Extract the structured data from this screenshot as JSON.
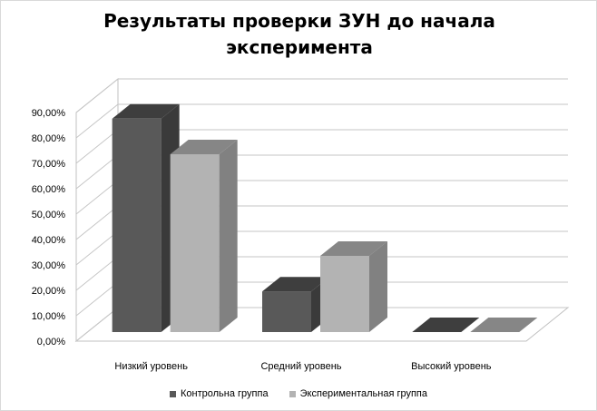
{
  "chart_data": {
    "type": "bar",
    "title": "Результаты проверки ЗУН до начала эксперимента",
    "title_lines": [
      "Результаты проверки ЗУН до начала",
      "эксперимента"
    ],
    "categories": [
      "Низкий уровень",
      "Средний уровень",
      "Высокий уровень"
    ],
    "series": [
      {
        "name": "Контрольна группа",
        "values": [
          0.84,
          0.16,
          0.0
        ],
        "color": "#595959"
      },
      {
        "name": "Экспериментальная группа",
        "values": [
          0.7,
          0.3,
          0.0
        ],
        "color": "#b3b3b3"
      }
    ],
    "ylim": [
      0,
      0.9
    ],
    "yticks": [
      "0,00%",
      "10,00%",
      "20,00%",
      "30,00%",
      "40,00%",
      "50,00%",
      "60,00%",
      "70,00%",
      "80,00%",
      "90,00%"
    ],
    "xlabel": "",
    "ylabel": "",
    "grid": true,
    "legend_position": "bottom",
    "style": "3d-column"
  }
}
